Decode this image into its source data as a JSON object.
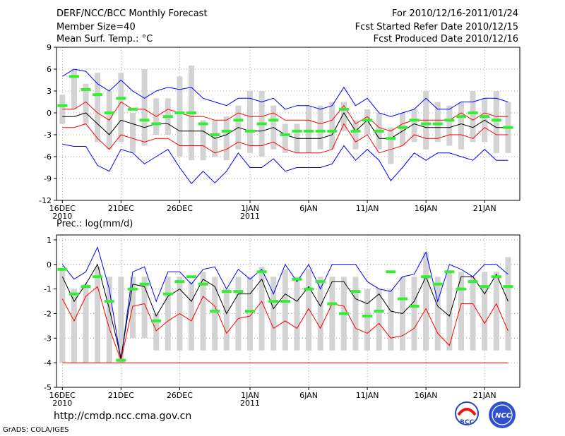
{
  "header": {
    "title": "DERF/NCC/BCC Monthly Forecast",
    "member": "Member Size=40",
    "variable": "Mean Surf. Temp.: °C",
    "period": "For 2010/12/16-2011/01/24",
    "start": "Fcst Started Refer Date 2010/12/15",
    "produced": "Fcst Produced Date 2010/12/16"
  },
  "footer": {
    "url": "http://cmdp.ncc.cma.gov.cn",
    "grads": "GrADS: COLA/IGES",
    "bcc_logo": "BCC",
    "ncc_logo": "NCC"
  },
  "colors": {
    "box": "#d3d3d3",
    "median": "#000000",
    "spread": "#ff0000",
    "extreme": "#0000ff",
    "mean": "#33ee33",
    "grid": "#888888"
  },
  "chart_data": [
    {
      "type": "line",
      "title": "",
      "ylabel": "Mean Surf. Temp.: °C",
      "ylim": [
        -12,
        9
      ],
      "yticks": [
        9,
        6,
        3,
        0,
        -3,
        -6,
        -9,
        -12
      ],
      "xlim": [
        0.5,
        40
      ],
      "x_ticks": [
        {
          "day": 1,
          "label": "16DEC",
          "sub": "2010"
        },
        {
          "day": 6,
          "label": "21DEC",
          "sub": ""
        },
        {
          "day": 11,
          "label": "26DEC",
          "sub": ""
        },
        {
          "day": 17,
          "label": "1JAN",
          "sub": "2011"
        },
        {
          "day": 22,
          "label": "6JAN",
          "sub": ""
        },
        {
          "day": 27,
          "label": "11JAN",
          "sub": ""
        },
        {
          "day": 32,
          "label": "16JAN",
          "sub": ""
        },
        {
          "day": 37,
          "label": "21JAN",
          "sub": ""
        }
      ],
      "days": 39,
      "series": [
        {
          "name": "max",
          "values": [
            5,
            6,
            5.7,
            4,
            3,
            4.5,
            3,
            2,
            3,
            3.5,
            3.2,
            3.5,
            2,
            1.5,
            1,
            2,
            2,
            1.5,
            2,
            0.5,
            1,
            1,
            0.5,
            1,
            3.5,
            1,
            2,
            0,
            -0.5,
            0,
            0.5,
            2,
            0.5,
            0.5,
            1.5,
            1.5,
            2,
            2,
            1.5
          ]
        },
        {
          "name": "upper",
          "values": [
            0.5,
            0.5,
            1.5,
            0,
            -1,
            1.5,
            0.5,
            0.5,
            -0.5,
            0.5,
            0,
            -0.5,
            -0.5,
            -1,
            -1,
            0,
            -0.5,
            -0.5,
            0,
            -1,
            -1,
            -1,
            -1.5,
            -1,
            1,
            -1.5,
            -0.5,
            -2,
            -2.5,
            -1.5,
            -1,
            -1,
            -1,
            -1,
            0,
            -1,
            0,
            -0.5,
            -0.5
          ]
        },
        {
          "name": "median",
          "values": [
            -0.5,
            -0.5,
            0,
            -1.5,
            -3,
            -1,
            -1.5,
            -2,
            -1.5,
            -1.5,
            -2.5,
            -2.5,
            -2.5,
            -3.5,
            -3,
            -2,
            -2.5,
            -2.5,
            -2,
            -3,
            -3.5,
            -3.5,
            -3.5,
            -3,
            0,
            -2.5,
            -1,
            -3.5,
            -3.5,
            -2.5,
            -1.5,
            -2,
            -2,
            -2,
            -1.5,
            -2,
            -1,
            -2,
            -2
          ]
        },
        {
          "name": "lower",
          "values": [
            -2,
            -2,
            -1.5,
            -3.5,
            -5,
            -3,
            -3.5,
            -4,
            -3.5,
            -3.5,
            -4.5,
            -4.5,
            -4.5,
            -5.5,
            -5,
            -4,
            -4.5,
            -4.5,
            -4,
            -5,
            -5.5,
            -5.5,
            -5.5,
            -5,
            -1.5,
            -4,
            -3,
            -5.5,
            -5,
            -4.5,
            -3,
            -3.5,
            -3.5,
            -3,
            -3,
            -3.5,
            -2,
            -3,
            -3
          ]
        },
        {
          "name": "min",
          "values": [
            -4.3,
            -4.6,
            -4.6,
            -7.2,
            -8,
            -5,
            -5.5,
            -7,
            -6,
            -5,
            -7.5,
            -9.7,
            -8,
            -9.6,
            -8,
            -5.5,
            -7.5,
            -7.5,
            -6.3,
            -8,
            -7.5,
            -7.5,
            -7.5,
            -7,
            -4.5,
            -6.5,
            -5,
            -6.5,
            -9.3,
            -7.5,
            -5.5,
            -6.5,
            -5.5,
            -5.5,
            -6,
            -6.5,
            -5,
            -6.5,
            -6.5
          ]
        },
        {
          "name": "ensemble_mean",
          "values": [
            1,
            5,
            3.2,
            2.5,
            0,
            2,
            0.5,
            -1,
            -1.5,
            -0.5,
            0,
            0,
            -1.5,
            -3,
            -2.5,
            -1,
            -2.5,
            -1.5,
            -1,
            -3,
            -2.5,
            -2.5,
            -2.5,
            -2.5,
            0.5,
            -2.5,
            -1,
            -2.5,
            -3.5,
            -2,
            -1,
            -1.5,
            -1.5,
            -1,
            -0.5,
            0,
            -0.5,
            -1,
            -2
          ]
        },
        {
          "name": "box_high",
          "values": [
            2.5,
            6,
            4,
            5.5,
            3,
            5.5,
            0,
            6,
            2,
            2,
            5,
            6.5,
            -1,
            -1,
            -0.5,
            1,
            3,
            3,
            1,
            -1.5,
            -1.5,
            1,
            1,
            1.5,
            1.5,
            -1,
            0.5,
            0,
            -2,
            0,
            0.5,
            3,
            1.5,
            1,
            1.5,
            3,
            2,
            3,
            1.5
          ]
        },
        {
          "name": "box_low",
          "values": [
            -1.5,
            0.5,
            -1.5,
            -4,
            -5,
            -4,
            -5.5,
            -4.5,
            -3,
            -3,
            -6,
            -6.5,
            -6.5,
            -6,
            -6.5,
            -5,
            -5.5,
            -6,
            -5,
            -5.5,
            -5.5,
            -5.5,
            -5,
            -5,
            -2.5,
            -5,
            -3,
            -5,
            -7,
            -4.5,
            -4,
            -5,
            -4,
            -4.5,
            -5,
            -4,
            -4,
            -5.5,
            -5.5
          ]
        }
      ]
    },
    {
      "type": "line",
      "title": "Prec.: log(mm/d)",
      "ylabel": "Prec.: log(mm/d)",
      "ylim": [
        -5,
        1.2
      ],
      "yticks": [
        1,
        0,
        -1,
        -2,
        -3,
        -4,
        -5
      ],
      "xlim": [
        0.5,
        40
      ],
      "x_ticks": [
        {
          "day": 1,
          "label": "16DEC",
          "sub": "2010"
        },
        {
          "day": 6,
          "label": "21DEC",
          "sub": ""
        },
        {
          "day": 11,
          "label": "26DEC",
          "sub": ""
        },
        {
          "day": 17,
          "label": "1JAN",
          "sub": "2011"
        },
        {
          "day": 22,
          "label": "6JAN",
          "sub": ""
        },
        {
          "day": 27,
          "label": "11JAN",
          "sub": ""
        },
        {
          "day": 32,
          "label": "16JAN",
          "sub": ""
        },
        {
          "day": 37,
          "label": "21JAN",
          "sub": ""
        }
      ],
      "days": 39,
      "series": [
        {
          "name": "max",
          "values": [
            0,
            -0.6,
            -0.3,
            0.7,
            -1,
            -3.9,
            -0.3,
            -0.1,
            -1.5,
            -0.3,
            -0.3,
            -0.8,
            -0.2,
            -0.1,
            -1,
            -0.2,
            -0.6,
            -0.2,
            -1.2,
            0,
            -0.7,
            0,
            -1,
            0,
            0,
            0,
            -0.7,
            -1,
            -1.1,
            -0.5,
            -0.4,
            0.5,
            -1.5,
            0,
            -0.2,
            -0.5,
            0,
            0,
            -0.4
          ]
        },
        {
          "name": "median",
          "values": [
            -0.5,
            -1.5,
            -0.8,
            0,
            -1.8,
            -3.8,
            -0.8,
            -0.9,
            -2.1,
            -1.3,
            -1,
            -1.5,
            -0.6,
            -0.9,
            -2,
            -1.2,
            -1.2,
            -0.6,
            -1.8,
            -1.2,
            -1.5,
            -0.9,
            -1.7,
            -0.7,
            -0.7,
            -1.4,
            -1.6,
            -1.2,
            -1.9,
            -2,
            -1.5,
            -0.5,
            -1.7,
            -2.1,
            -0.5,
            -0.5,
            -1.2,
            -0.4,
            -1.5
          ]
        },
        {
          "name": "lower",
          "values": [
            -1.4,
            -2.3,
            -1.3,
            -0.9,
            -2.6,
            -3.9,
            -1.7,
            -1.6,
            -2.7,
            -2.3,
            -2,
            -2.3,
            -1.3,
            -1.7,
            -2.8,
            -2.2,
            -2.1,
            -1.5,
            -2.6,
            -2.3,
            -2.6,
            -1.8,
            -2.6,
            -1.6,
            -1.7,
            -2.6,
            -2.8,
            -2.4,
            -3,
            -2.9,
            -2.6,
            -1.8,
            -2.8,
            -3.3,
            -1.6,
            -1.6,
            -2.4,
            -1.6,
            -2.7
          ]
        },
        {
          "name": "min",
          "values": [
            -4,
            -4,
            -4,
            -4,
            -4,
            -4,
            -4,
            -4,
            -4,
            -4,
            -4,
            -4,
            -4,
            -4,
            -4,
            -4,
            -4,
            -4,
            -4,
            -4,
            -4,
            -4,
            -4,
            -4,
            -4,
            -4,
            -4,
            -4,
            -4,
            -4,
            -4,
            -4,
            -4,
            -4,
            -4,
            -4,
            -4,
            -4,
            -4
          ]
        },
        {
          "name": "ensemble_mean",
          "values": [
            -0.2,
            -1.2,
            -0.9,
            -0.5,
            -1.5,
            -3.9,
            -1,
            -0.8,
            -2.3,
            -1.2,
            -0.7,
            -0.5,
            -0.8,
            -1.9,
            -1.1,
            -1.1,
            -1.9,
            -0.3,
            -1.5,
            -1.5,
            -0.6,
            -1,
            -0.7,
            -1.6,
            -2,
            -1.1,
            -2.1,
            -1.9,
            -0.3,
            -1.4,
            -1.7,
            -0.5,
            -0.8,
            -0.3,
            -1,
            -0.7,
            -0.9,
            -0.5,
            -0.9
          ]
        },
        {
          "name": "box_high",
          "values": [
            -0.2,
            -1,
            -0.8,
            -0.1,
            -0.5,
            -0.5,
            -0.5,
            -0.5,
            -2,
            -0.5,
            -0.5,
            -0.7,
            -0.3,
            -0.5,
            -1,
            -0.5,
            -0.5,
            -0.1,
            -0.5,
            -0.2,
            -0.5,
            -0.2,
            -0.5,
            -0.5,
            -0.5,
            -0.5,
            -1,
            -1,
            -1,
            -0.5,
            -0.5,
            0.5,
            -0.5,
            -0.3,
            -0.3,
            -0.5,
            -0.3,
            -0.3,
            0.3
          ]
        },
        {
          "name": "box_low",
          "values": [
            -4,
            -4,
            -4,
            -4,
            -4,
            -4,
            -3,
            -3,
            -3.5,
            -3.5,
            -3.5,
            -3.5,
            -3.5,
            -3.5,
            -3.5,
            -3.5,
            -3.5,
            -3.5,
            -3.5,
            -3.5,
            -3.5,
            -3.5,
            -3.5,
            -3.5,
            -3.5,
            -3.5,
            -3.5,
            -3.5,
            -3.5,
            -3.5,
            -3.5,
            -3.5,
            -3.5,
            -3.5,
            -3.5,
            -3.5,
            -3.5,
            -3.5,
            -3.5
          ]
        }
      ]
    }
  ]
}
